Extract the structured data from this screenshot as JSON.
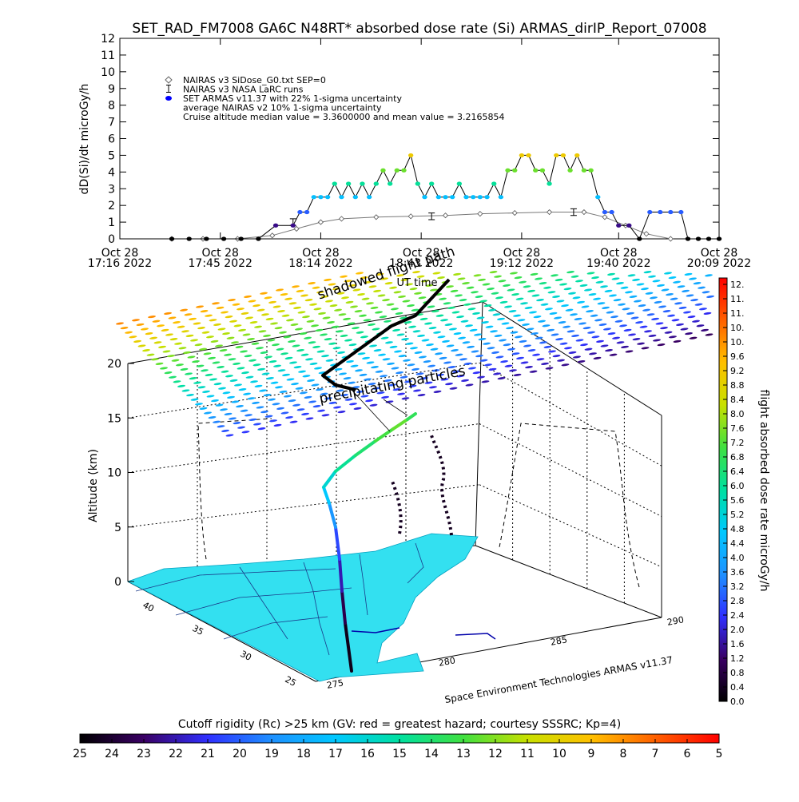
{
  "colors": {
    "background": "#ffffff",
    "dose_ramp": [
      "#000000",
      "#3a0064",
      "#3030ff",
      "#1e90ff",
      "#00c8ff",
      "#00e0a0",
      "#40e040",
      "#c8e000",
      "#ffc000",
      "#ff6000",
      "#ff0000"
    ],
    "map_land": "#33e0f0",
    "map_water": "#ffffff",
    "nairas_line": "#777777",
    "armas_v11": "#0000ff",
    "flight_path": "#000000"
  },
  "chart_data": [
    {
      "type": "line",
      "title": "SET_RAD_FM7008  GA6C N48RT* absorbed dose rate (Si) ARMAS_dirIP_Report_07008",
      "ylabel": "dD(Si)/dt microGy/h",
      "xlabel": "",
      "ylim": [
        0,
        12
      ],
      "yticks": [
        "0",
        "1",
        "2",
        "3",
        "4",
        "5",
        "6",
        "7",
        "8",
        "9",
        "10",
        "11",
        "12"
      ],
      "xlim": [
        "17:16",
        "20:09"
      ],
      "xticks": [
        {
          "t": "17:16",
          "line1": "Oct 28",
          "line2": "17:16 2022"
        },
        {
          "t": "17:45",
          "line1": "Oct 28",
          "line2": "17:45 2022"
        },
        {
          "t": "18:14",
          "line1": "Oct 28",
          "line2": "18:14 2022"
        },
        {
          "t": "18:43",
          "line1": "Oct 28",
          "line2": "18:43 2022"
        },
        {
          "t": "19:12",
          "line1": "Oct 28",
          "line2": "19:12 2022"
        },
        {
          "t": "19:40",
          "line1": "Oct 28",
          "line2": "19:40 2022"
        },
        {
          "t": "20:09",
          "line1": "Oct 28",
          "line2": "20:09 2022"
        }
      ],
      "legend": [
        {
          "symbol": "diamond",
          "text": "NAIRAS v3 SiDose_G0.txt SEP=0"
        },
        {
          "symbol": "errorbar",
          "text": "NAIRAS v3 NASA LaRC runs"
        },
        {
          "symbol": "dot",
          "text": "SET ARMAS v11.37 with 22% 1-sigma uncertainty"
        },
        {
          "symbol": "none",
          "text": "average NAIRAS v2 10% 1-sigma uncertainty"
        },
        {
          "symbol": "none",
          "text": "Cruise altitude median value = 3.3600000 and mean value = 3.2165854"
        }
      ],
      "series": [
        {
          "name": "NAIRAS v3 SiDose_G0.txt SEP=0",
          "x": [
            "17:31",
            "17:40",
            "17:50",
            "18:00",
            "18:07",
            "18:14",
            "18:20",
            "18:30",
            "18:40",
            "18:50",
            "19:00",
            "19:10",
            "19:20",
            "19:30",
            "19:36",
            "19:42",
            "19:48",
            "19:55"
          ],
          "values": [
            0.0,
            0.0,
            0.0,
            0.2,
            0.6,
            1.0,
            1.2,
            1.3,
            1.35,
            1.4,
            1.5,
            1.55,
            1.6,
            1.6,
            1.3,
            0.8,
            0.3,
            0.0
          ]
        },
        {
          "name": "NAIRAS v3 NASA LaRC runs",
          "x": [
            "18:06",
            "18:46",
            "19:27"
          ],
          "values": [
            1.0,
            1.35,
            1.6
          ],
          "err": [
            0.2,
            0.2,
            0.2
          ]
        },
        {
          "name": "SET ARMAS v11.37 with 22% 1-sigma uncertainty",
          "x": [
            "17:31",
            "17:36",
            "17:41",
            "17:46",
            "17:51",
            "17:56",
            "18:01",
            "18:06",
            "18:08",
            "18:10",
            "18:12",
            "18:14",
            "18:16",
            "18:18",
            "18:20",
            "18:22",
            "18:24",
            "18:26",
            "18:28",
            "18:30",
            "18:32",
            "18:34",
            "18:36",
            "18:38",
            "18:40",
            "18:42",
            "18:44",
            "18:46",
            "18:48",
            "18:50",
            "18:52",
            "18:54",
            "18:56",
            "18:58",
            "19:00",
            "19:02",
            "19:04",
            "19:06",
            "19:08",
            "19:10",
            "19:12",
            "19:14",
            "19:16",
            "19:18",
            "19:20",
            "19:22",
            "19:24",
            "19:26",
            "19:28",
            "19:30",
            "19:32",
            "19:34",
            "19:36",
            "19:38",
            "19:40",
            "19:43",
            "19:46",
            "19:49",
            "19:52",
            "19:55",
            "19:58",
            "20:00",
            "20:03",
            "20:06",
            "20:09"
          ],
          "values": [
            0,
            0,
            0,
            0,
            0,
            0,
            0.8,
            0.8,
            1.6,
            1.6,
            2.5,
            2.5,
            2.5,
            3.3,
            2.5,
            3.3,
            2.5,
            3.3,
            2.5,
            3.3,
            4.1,
            3.3,
            4.1,
            4.1,
            5.0,
            3.3,
            2.5,
            3.3,
            2.5,
            2.5,
            2.5,
            3.3,
            2.5,
            2.5,
            2.5,
            2.5,
            3.3,
            2.5,
            4.1,
            4.1,
            5.0,
            5.0,
            4.1,
            4.1,
            3.3,
            5.0,
            5.0,
            4.1,
            5.0,
            4.1,
            4.1,
            2.5,
            1.6,
            1.6,
            0.8,
            0.8,
            0,
            1.6,
            1.6,
            1.6,
            1.6,
            0,
            0,
            0,
            0
          ]
        }
      ]
    },
    {
      "type": "scatter",
      "title": "",
      "zlabel": "Altitude (km)",
      "zlim": [
        0,
        20
      ],
      "zticks": [
        "0",
        "5",
        "10",
        "15",
        "20"
      ],
      "lat_ticks": [
        "25",
        "30",
        "35",
        "40"
      ],
      "lon_ticks": [
        "275",
        "280",
        "285",
        "290"
      ],
      "annotations": [
        "shadowed flight path",
        "UT time",
        "precipitating particles"
      ],
      "credit": "Space Environment Technologies ARMAS v11.37",
      "flight_track": {
        "lat": [
          33.6,
          34.5,
          35.5,
          36.5,
          37.5,
          38.5,
          39.3,
          39.8,
          40.1,
          40.3,
          40.5,
          40.6,
          40.8
        ],
        "lon": [
          277.6,
          278.2,
          278.9,
          279.6,
          280.3,
          281.0,
          281.6,
          282.0,
          282.3,
          282.5,
          282.7,
          282.8,
          283.0
        ],
        "altitude_km": [
          0,
          1,
          3,
          6,
          8,
          9,
          11,
          12,
          12,
          12,
          12,
          12,
          12
        ],
        "dose": [
          0.2,
          0.6,
          1.2,
          1.8,
          2.5,
          3.2,
          3.6,
          4.1,
          4.4,
          4.8,
          5.0,
          4.6,
          4.2
        ]
      }
    },
    {
      "type": "heatmap",
      "title": "",
      "label": "flight absorbed dose rate microGy/h",
      "range": [
        0.0,
        12.0
      ],
      "ticks": [
        "0.0",
        "0.4",
        "0.8",
        "1.2",
        "1.6",
        "2.0",
        "2.4",
        "2.8",
        "3.2",
        "3.6",
        "4.0",
        "4.4",
        "4.8",
        "5.2",
        "5.6",
        "6.0",
        "6.4",
        "6.8",
        "7.2",
        "7.6",
        "8.0",
        "8.4",
        "8.8",
        "9.2",
        "9.6",
        "10.",
        "10.",
        "11.",
        "11.",
        "12."
      ]
    },
    {
      "type": "heatmap",
      "title": "Cutoff rigidity (Rc) >25 km (GV: red = greatest hazard; courtesy SSSRC; Kp=4)",
      "range": [
        25,
        5
      ],
      "ticks": [
        "25",
        "24",
        "23",
        "22",
        "21",
        "20",
        "19",
        "18",
        "17",
        "16",
        "15",
        "14",
        "13",
        "12",
        "11",
        "10",
        "9",
        "8",
        "7",
        "6",
        "5"
      ]
    }
  ]
}
